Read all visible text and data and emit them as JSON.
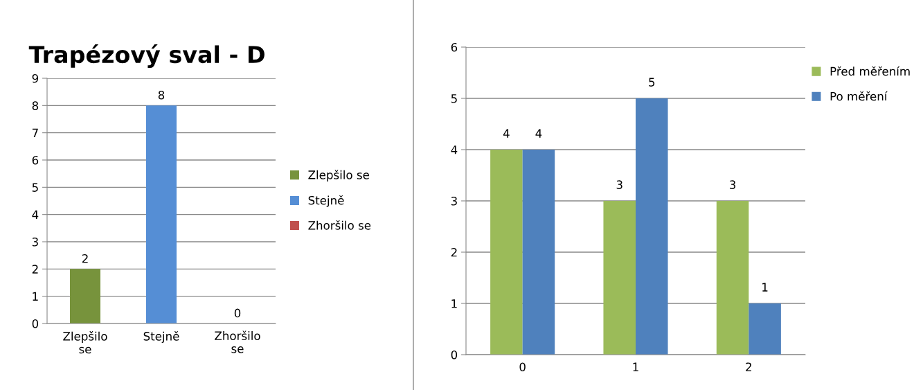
{
  "chart_data": [
    {
      "type": "bar",
      "title": "Trapézový sval - D",
      "categories": [
        "Zlepšilo\nse",
        "Stejně",
        "Zhoršilo\nse"
      ],
      "stacked": true,
      "series": [
        {
          "name": "Zlepšilo se",
          "color": "#77933c",
          "values": [
            2,
            null,
            null
          ]
        },
        {
          "name": "Stejně",
          "color": "#558ed5",
          "values": [
            null,
            8,
            null
          ]
        },
        {
          "name": "Zhoršilo se",
          "color": "#c0504d",
          "values": [
            null,
            null,
            0
          ]
        }
      ],
      "ylim": [
        0,
        9
      ],
      "yticks": [
        0,
        1,
        2,
        3,
        4,
        5,
        6,
        7,
        8,
        9
      ],
      "grid": "y",
      "legend": "right",
      "data_labels": true
    },
    {
      "type": "bar",
      "categories": [
        "0",
        "1",
        "2"
      ],
      "series": [
        {
          "name": "Před měřením",
          "color": "#9bbb59",
          "values": [
            4,
            3,
            3
          ]
        },
        {
          "name": "Po měření",
          "color": "#4f81bd",
          "values": [
            4,
            5,
            1
          ]
        }
      ],
      "ylim": [
        0,
        6
      ],
      "yticks": [
        0,
        1,
        2,
        3,
        4,
        5,
        6
      ],
      "grid": "y",
      "legend": "top right",
      "data_labels": true
    }
  ]
}
